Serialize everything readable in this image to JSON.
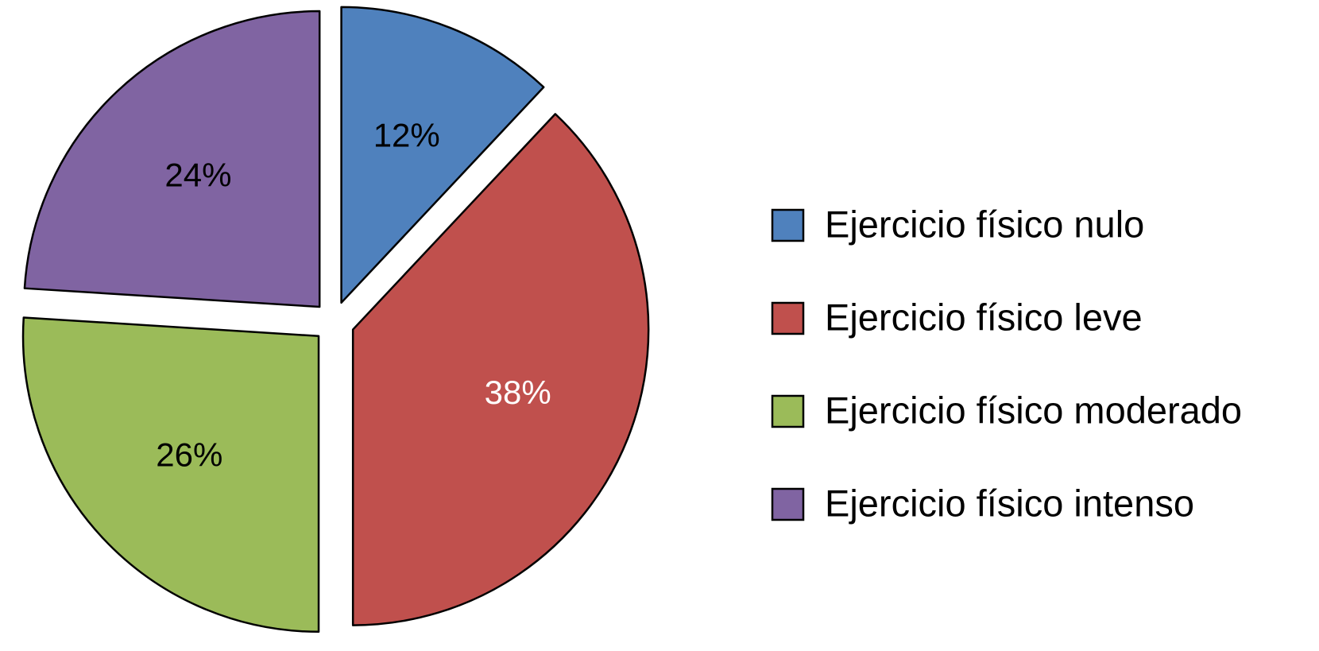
{
  "chart_data": {
    "type": "pie",
    "categories": [
      "Ejercicio físico nulo",
      "Ejercicio físico leve",
      "Ejercicio físico moderado",
      "Ejercicio físico intenso"
    ],
    "values": [
      12,
      38,
      26,
      24
    ],
    "value_labels": [
      "12%",
      "38%",
      "26%",
      "24%"
    ],
    "colors": [
      "#4f81bd",
      "#c0504d",
      "#9bbb59",
      "#8064a2"
    ],
    "label_colors": [
      "#000000",
      "#ffffff",
      "#000000",
      "#000000"
    ],
    "legend": "right"
  }
}
